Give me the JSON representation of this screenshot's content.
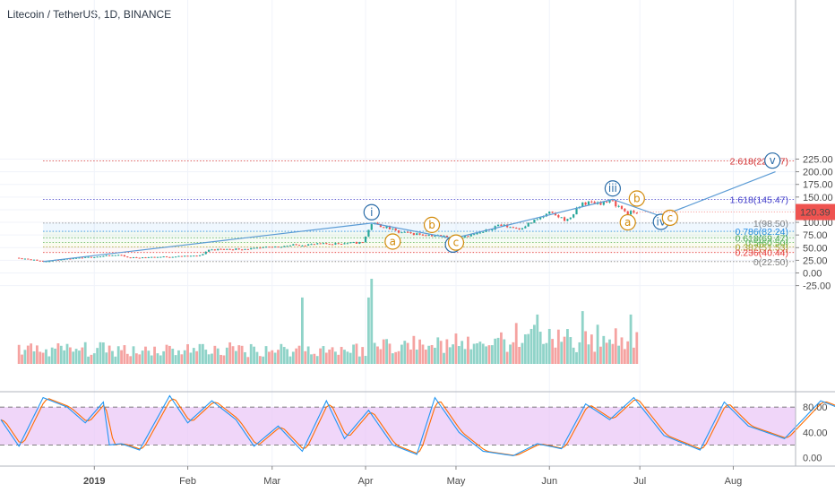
{
  "title": "Litecoin / TetherUS, 1D, BINANCE",
  "colors": {
    "up": "#26a69a",
    "down": "#ef5350",
    "vol_up": "#8fd3c8",
    "vol_down": "#f5a3a1",
    "wave_main": "#2a6ca8",
    "wave_sub": "#d28a0a",
    "path": "#5b9bd5",
    "k": "#2196f3",
    "d": "#ff6d00",
    "stoch_band": "#e9c4f7"
  },
  "price_label": "120.39",
  "chart_data": {
    "type": "candlestick",
    "y_axis": {
      "ticks": [
        "225.00",
        "200.00",
        "175.00",
        "150.00",
        "125.00",
        "100.00",
        "75.00",
        "50.00",
        "25.00",
        "0.00",
        "-25.00"
      ]
    },
    "x_axis": {
      "ticks": [
        "2019",
        "Feb",
        "Mar",
        "Apr",
        "May",
        "Jun",
        "Jul",
        "Aug"
      ]
    },
    "price_anchors": [
      [
        "2018-12-07",
        30
      ],
      [
        "2018-12-15",
        23
      ],
      [
        "2019-01-01",
        32
      ],
      [
        "2019-01-10",
        36
      ],
      [
        "2019-01-12",
        30
      ],
      [
        "2019-01-31",
        33
      ],
      [
        "2019-02-05",
        34
      ],
      [
        "2019-02-08",
        46
      ],
      [
        "2019-02-23",
        48
      ],
      [
        "2019-03-08",
        55
      ],
      [
        "2019-03-31",
        60
      ],
      [
        "2019-04-02",
        85
      ],
      [
        "2019-04-03",
        98
      ],
      [
        "2019-04-08",
        90
      ],
      [
        "2019-04-12",
        80
      ],
      [
        "2019-04-28",
        72
      ],
      [
        "2019-05-01",
        70
      ],
      [
        "2019-05-10",
        80
      ],
      [
        "2019-05-15",
        95
      ],
      [
        "2019-05-22",
        88
      ],
      [
        "2019-06-01",
        118
      ],
      [
        "2019-06-07",
        104
      ],
      [
        "2019-06-12",
        138
      ],
      [
        "2019-06-22",
        140
      ],
      [
        "2019-06-27",
        118
      ],
      [
        "2019-06-30",
        120.39
      ]
    ],
    "fib_levels": [
      {
        "ratio": "2.618",
        "price": 221.47,
        "label": "2.618(221.47)",
        "color": "#d32f2f"
      },
      {
        "ratio": "1.618",
        "price": 145.47,
        "label": "1.618(145.47)",
        "color": "#3f3ac9"
      },
      {
        "ratio": "1",
        "price": 98.5,
        "label": "1(98.50)",
        "color": "#808080"
      },
      {
        "ratio": "0.786",
        "price": 82.24,
        "label": "0.786(82.24)",
        "color": "#1e88e5"
      },
      {
        "ratio": "0.618",
        "price": 69.47,
        "label": "0.618(69.47)",
        "color": "#43a047"
      },
      {
        "ratio": "0.5",
        "price": 60.5,
        "label": "0.5(60.50)",
        "color": "#4caf50"
      },
      {
        "ratio": "0.382",
        "price": 51.53,
        "label": "0.382(51.53)",
        "color": "#9e9d24"
      },
      {
        "ratio": "0.236",
        "price": 40.44,
        "label": "0.236(40.44)",
        "color": "#e53935"
      },
      {
        "ratio": "0",
        "price": 22.5,
        "label": "0(22.50)",
        "color": "#808080"
      }
    ],
    "wave_path": [
      [
        "2018-12-15",
        22.5
      ],
      [
        "2019-04-03",
        98.5
      ],
      [
        "2019-04-30",
        68
      ],
      [
        "2019-06-22",
        145.5
      ],
      [
        "2019-07-08",
        112
      ],
      [
        "2019-08-15",
        200
      ]
    ],
    "wave_labels": [
      {
        "text": "i",
        "date": "2019-04-03",
        "price": 120,
        "style": "main"
      },
      {
        "text": "ii",
        "date": "2019-04-30",
        "price": 56,
        "style": "main"
      },
      {
        "text": "iii",
        "date": "2019-06-22",
        "price": 167,
        "style": "main"
      },
      {
        "text": "iv",
        "date": "2019-07-08",
        "price": 101,
        "style": "main"
      },
      {
        "text": "v",
        "date": "2019-08-14",
        "price": 222,
        "style": "main"
      },
      {
        "text": "a",
        "date": "2019-04-10",
        "price": 62,
        "style": "sub"
      },
      {
        "text": "b",
        "date": "2019-04-23",
        "price": 95,
        "style": "sub"
      },
      {
        "text": "c",
        "date": "2019-05-01",
        "price": 60,
        "style": "sub"
      },
      {
        "text": "a",
        "date": "2019-06-27",
        "price": 100,
        "style": "sub"
      },
      {
        "text": "b",
        "date": "2019-06-30",
        "price": 147,
        "style": "sub"
      },
      {
        "text": "c",
        "date": "2019-07-11",
        "price": 109,
        "style": "sub"
      }
    ],
    "volume_spikes": [
      [
        "2019-03-11",
        0.78
      ],
      [
        "2019-04-02",
        0.78
      ],
      [
        "2019-04-03",
        1.0
      ],
      [
        "2019-05-28",
        0.58
      ],
      [
        "2019-06-12",
        0.62
      ],
      [
        "2019-06-28",
        0.58
      ]
    ],
    "stoch_axis": {
      "ticks": [
        "80.00",
        "40.00",
        "0.00"
      ],
      "band": [
        20,
        80
      ]
    },
    "stoch_k": [
      [
        0,
        60
      ],
      [
        6,
        18
      ],
      [
        14,
        95
      ],
      [
        22,
        80
      ],
      [
        28,
        55
      ],
      [
        34,
        88
      ],
      [
        36,
        20
      ],
      [
        40,
        22
      ],
      [
        46,
        12
      ],
      [
        56,
        98
      ],
      [
        62,
        55
      ],
      [
        70,
        90
      ],
      [
        78,
        60
      ],
      [
        84,
        18
      ],
      [
        92,
        50
      ],
      [
        100,
        10
      ],
      [
        108,
        90
      ],
      [
        114,
        30
      ],
      [
        122,
        75
      ],
      [
        130,
        20
      ],
      [
        138,
        5
      ],
      [
        144,
        95
      ],
      [
        152,
        40
      ],
      [
        160,
        10
      ],
      [
        170,
        3
      ],
      [
        178,
        22
      ],
      [
        186,
        14
      ],
      [
        194,
        85
      ],
      [
        202,
        60
      ],
      [
        210,
        95
      ],
      [
        220,
        35
      ],
      [
        232,
        12
      ],
      [
        240,
        88
      ],
      [
        248,
        50
      ],
      [
        260,
        30
      ],
      [
        272,
        90
      ],
      [
        280,
        75
      ],
      [
        292,
        42
      ],
      [
        298,
        2
      ],
      [
        306,
        28
      ]
    ]
  }
}
